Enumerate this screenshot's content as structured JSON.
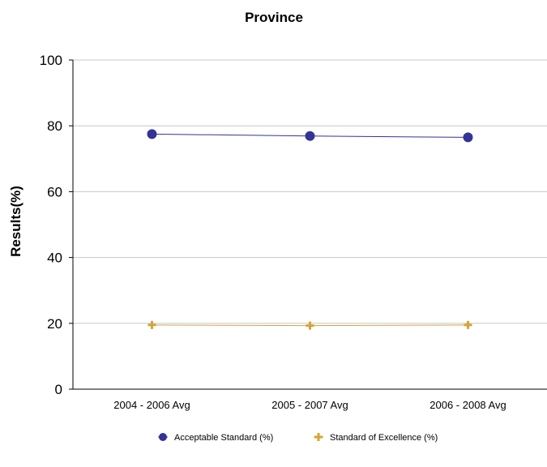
{
  "chart_data": {
    "type": "line",
    "title": "Province",
    "xlabel": "",
    "ylabel": "Results(%)",
    "categories": [
      "2004 - 2006 Avg",
      "2005 - 2007 Avg",
      "2006 - 2008 Avg"
    ],
    "ylim": [
      0,
      100
    ],
    "yticks": [
      0,
      20,
      40,
      60,
      80,
      100
    ],
    "grid": true,
    "legend_position": "bottom",
    "series": [
      {
        "name": "Acceptable Standard (%)",
        "values": [
          77.5,
          76.9,
          76.5
        ],
        "color": "#333399",
        "marker": "circle"
      },
      {
        "name": "Standard of Excellence (%)",
        "values": [
          19.5,
          19.3,
          19.5
        ],
        "color": "#d4a437",
        "marker": "plus"
      }
    ]
  }
}
